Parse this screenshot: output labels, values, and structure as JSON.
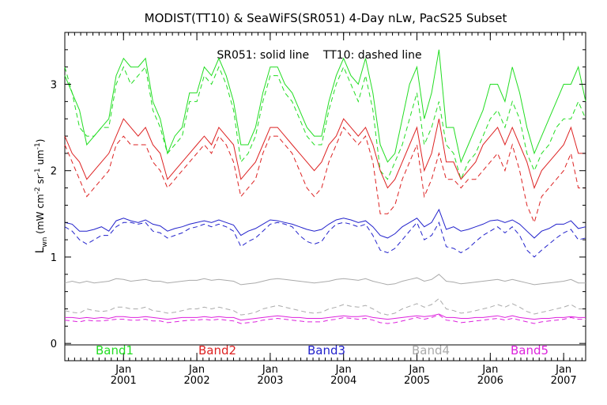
{
  "chart_data": {
    "type": "line",
    "title": "MODIST(TT10) & SeaWiFS(SR051) 4-Day nLw, PacS25 Subset",
    "annotation": "SR051: solid line    TT10: dashed line",
    "ylabel_main": "L",
    "ylabel_sub": "wn",
    "ylabel_units": "(mW cm",
    "ylabel_exp1": "-2",
    "ylabel_mid": " sr",
    "ylabel_exp2": "-1",
    "ylabel_mid2": " um",
    "ylabel_exp3": "-1",
    "ylabel_end": ")",
    "xlim": [
      2000.2,
      2007.3
    ],
    "ylim": [
      -0.2,
      3.6
    ],
    "yticks": [
      0,
      1,
      2,
      3
    ],
    "ytick_labels": [
      "0",
      "1",
      "2",
      "3"
    ],
    "xticks": [
      {
        "value": 2001.0,
        "month": "Jan",
        "year": "2001"
      },
      {
        "value": 2002.0,
        "month": "Jan",
        "year": "2002"
      },
      {
        "value": 2003.0,
        "month": "Jan",
        "year": "2003"
      },
      {
        "value": 2004.0,
        "month": "Jan",
        "year": "2004"
      },
      {
        "value": 2005.0,
        "month": "Jan",
        "year": "2005"
      },
      {
        "value": 2006.0,
        "month": "Jan",
        "year": "2006"
      },
      {
        "value": 2007.0,
        "month": "Jan",
        "year": "2007"
      }
    ],
    "legend": [
      {
        "label": "Band1",
        "color": "#22dd22"
      },
      {
        "label": "Band2",
        "color": "#dd2222"
      },
      {
        "label": "Band3",
        "color": "#2222cc"
      },
      {
        "label": "Band4",
        "color": "#aaaaaa"
      },
      {
        "label": "Band5",
        "color": "#dd22dd"
      }
    ],
    "x": [
      2000.2,
      2000.3,
      2000.4,
      2000.5,
      2000.6,
      2000.7,
      2000.8,
      2000.9,
      2001.0,
      2001.1,
      2001.2,
      2001.3,
      2001.4,
      2001.5,
      2001.6,
      2001.7,
      2001.8,
      2001.9,
      2002.0,
      2002.1,
      2002.2,
      2002.3,
      2002.4,
      2002.5,
      2002.6,
      2002.7,
      2002.8,
      2002.9,
      2003.0,
      2003.1,
      2003.2,
      2003.3,
      2003.4,
      2003.5,
      2003.6,
      2003.7,
      2003.8,
      2003.9,
      2004.0,
      2004.1,
      2004.2,
      2004.3,
      2004.4,
      2004.5,
      2004.6,
      2004.7,
      2004.8,
      2004.9,
      2005.0,
      2005.1,
      2005.2,
      2005.3,
      2005.4,
      2005.5,
      2005.6,
      2005.7,
      2005.8,
      2005.9,
      2006.0,
      2006.1,
      2006.2,
      2006.3,
      2006.4,
      2006.5,
      2006.6,
      2006.7,
      2006.8,
      2006.9,
      2007.0,
      2007.1,
      2007.2,
      2007.3
    ],
    "series": [
      {
        "name": "Band1",
        "style": "solid",
        "color": "#22dd22",
        "values": [
          3.1,
          2.9,
          2.7,
          2.3,
          2.4,
          2.5,
          2.6,
          3.1,
          3.3,
          3.2,
          3.2,
          3.3,
          2.8,
          2.6,
          2.2,
          2.4,
          2.5,
          2.9,
          2.9,
          3.2,
          3.1,
          3.3,
          3.1,
          2.8,
          2.3,
          2.3,
          2.5,
          2.9,
          3.2,
          3.2,
          3.0,
          2.9,
          2.7,
          2.5,
          2.4,
          2.4,
          2.8,
          3.1,
          3.3,
          3.1,
          3.0,
          3.3,
          2.9,
          2.3,
          2.1,
          2.2,
          2.6,
          3.0,
          3.2,
          2.6,
          2.9,
          3.4,
          2.5,
          2.5,
          2.1,
          2.3,
          2.5,
          2.7,
          3.0,
          3.0,
          2.8,
          3.2,
          2.9,
          2.5,
          2.2,
          2.4,
          2.6,
          2.8,
          3.0,
          3.0,
          3.2,
          2.8
        ]
      },
      {
        "name": "Band1",
        "style": "dashed",
        "color": "#22dd22",
        "values": [
          3.2,
          2.9,
          2.5,
          2.4,
          2.4,
          2.5,
          2.5,
          3.0,
          3.2,
          3.0,
          3.1,
          3.2,
          2.7,
          2.5,
          2.2,
          2.3,
          2.4,
          2.8,
          2.8,
          3.1,
          3.0,
          3.2,
          3.0,
          2.7,
          2.1,
          2.2,
          2.4,
          2.8,
          3.1,
          3.1,
          2.9,
          2.8,
          2.6,
          2.4,
          2.3,
          2.3,
          2.7,
          3.0,
          3.2,
          3.0,
          2.8,
          3.1,
          2.7,
          2.0,
          1.9,
          2.1,
          2.3,
          2.6,
          2.9,
          2.3,
          2.5,
          2.8,
          2.3,
          2.2,
          1.9,
          2.1,
          2.2,
          2.4,
          2.6,
          2.7,
          2.5,
          2.8,
          2.6,
          2.2,
          2.0,
          2.2,
          2.3,
          2.5,
          2.6,
          2.6,
          2.8,
          2.6
        ]
      },
      {
        "name": "Band2",
        "style": "solid",
        "color": "#dd2222",
        "values": [
          2.4,
          2.2,
          2.1,
          1.9,
          2.0,
          2.1,
          2.2,
          2.4,
          2.6,
          2.5,
          2.4,
          2.5,
          2.3,
          2.2,
          1.9,
          2.0,
          2.1,
          2.2,
          2.3,
          2.4,
          2.3,
          2.5,
          2.4,
          2.3,
          1.9,
          2.0,
          2.1,
          2.3,
          2.5,
          2.5,
          2.4,
          2.3,
          2.2,
          2.1,
          2.0,
          2.1,
          2.3,
          2.4,
          2.6,
          2.5,
          2.4,
          2.5,
          2.3,
          2.0,
          1.8,
          1.9,
          2.1,
          2.3,
          2.5,
          2.0,
          2.2,
          2.6,
          2.1,
          2.1,
          1.9,
          2.0,
          2.1,
          2.3,
          2.4,
          2.5,
          2.3,
          2.5,
          2.3,
          2.1,
          1.8,
          2.0,
          2.1,
          2.2,
          2.3,
          2.5,
          2.2,
          2.2
        ]
      },
      {
        "name": "Band2",
        "style": "dashed",
        "color": "#dd2222",
        "values": [
          2.3,
          2.1,
          1.9,
          1.7,
          1.8,
          1.9,
          2.0,
          2.3,
          2.4,
          2.3,
          2.3,
          2.3,
          2.1,
          2.0,
          1.8,
          1.9,
          2.0,
          2.1,
          2.2,
          2.3,
          2.2,
          2.4,
          2.3,
          2.1,
          1.7,
          1.8,
          1.9,
          2.2,
          2.4,
          2.4,
          2.3,
          2.2,
          2.0,
          1.8,
          1.7,
          1.8,
          2.1,
          2.3,
          2.5,
          2.4,
          2.3,
          2.4,
          2.1,
          1.5,
          1.5,
          1.6,
          1.9,
          2.1,
          2.3,
          1.7,
          1.9,
          2.2,
          1.9,
          1.9,
          1.8,
          1.9,
          1.9,
          2.0,
          2.1,
          2.2,
          2.0,
          2.3,
          2.0,
          1.6,
          1.4,
          1.7,
          1.8,
          1.9,
          2.0,
          2.2,
          1.8,
          1.8
        ]
      },
      {
        "name": "Band3",
        "style": "solid",
        "color": "#2222cc",
        "values": [
          1.4,
          1.38,
          1.3,
          1.3,
          1.32,
          1.35,
          1.3,
          1.42,
          1.45,
          1.42,
          1.4,
          1.43,
          1.38,
          1.36,
          1.3,
          1.33,
          1.35,
          1.38,
          1.4,
          1.42,
          1.4,
          1.43,
          1.4,
          1.37,
          1.25,
          1.3,
          1.33,
          1.38,
          1.43,
          1.42,
          1.4,
          1.38,
          1.35,
          1.32,
          1.3,
          1.32,
          1.38,
          1.43,
          1.45,
          1.43,
          1.4,
          1.42,
          1.35,
          1.25,
          1.22,
          1.27,
          1.35,
          1.4,
          1.45,
          1.35,
          1.4,
          1.55,
          1.32,
          1.35,
          1.3,
          1.32,
          1.35,
          1.38,
          1.42,
          1.43,
          1.4,
          1.43,
          1.38,
          1.3,
          1.22,
          1.3,
          1.33,
          1.38,
          1.38,
          1.42,
          1.33,
          1.35
        ]
      },
      {
        "name": "Band3",
        "style": "dashed",
        "color": "#2222cc",
        "values": [
          1.35,
          1.3,
          1.2,
          1.15,
          1.2,
          1.25,
          1.25,
          1.35,
          1.4,
          1.4,
          1.38,
          1.4,
          1.3,
          1.28,
          1.22,
          1.25,
          1.28,
          1.33,
          1.35,
          1.38,
          1.35,
          1.38,
          1.35,
          1.3,
          1.12,
          1.18,
          1.22,
          1.3,
          1.38,
          1.4,
          1.38,
          1.35,
          1.25,
          1.18,
          1.15,
          1.18,
          1.3,
          1.38,
          1.4,
          1.38,
          1.35,
          1.38,
          1.25,
          1.08,
          1.05,
          1.1,
          1.2,
          1.3,
          1.4,
          1.2,
          1.25,
          1.4,
          1.12,
          1.1,
          1.05,
          1.1,
          1.18,
          1.25,
          1.3,
          1.35,
          1.28,
          1.35,
          1.25,
          1.08,
          1.0,
          1.08,
          1.15,
          1.22,
          1.28,
          1.32,
          1.2,
          1.22
        ]
      },
      {
        "name": "Band4",
        "style": "solid",
        "color": "#aaaaaa",
        "values": [
          0.7,
          0.72,
          0.7,
          0.72,
          0.7,
          0.71,
          0.72,
          0.75,
          0.74,
          0.72,
          0.73,
          0.74,
          0.72,
          0.72,
          0.7,
          0.71,
          0.72,
          0.73,
          0.73,
          0.75,
          0.73,
          0.74,
          0.73,
          0.72,
          0.68,
          0.69,
          0.7,
          0.72,
          0.74,
          0.75,
          0.74,
          0.73,
          0.72,
          0.71,
          0.7,
          0.71,
          0.72,
          0.74,
          0.75,
          0.74,
          0.73,
          0.75,
          0.72,
          0.7,
          0.68,
          0.69,
          0.72,
          0.74,
          0.76,
          0.72,
          0.74,
          0.8,
          0.72,
          0.71,
          0.69,
          0.7,
          0.71,
          0.72,
          0.73,
          0.74,
          0.72,
          0.74,
          0.72,
          0.7,
          0.68,
          0.69,
          0.7,
          0.71,
          0.72,
          0.74,
          0.7,
          0.7
        ]
      },
      {
        "name": "Band4",
        "style": "dashed",
        "color": "#aaaaaa",
        "values": [
          0.38,
          0.36,
          0.35,
          0.4,
          0.38,
          0.37,
          0.38,
          0.42,
          0.42,
          0.4,
          0.4,
          0.42,
          0.38,
          0.37,
          0.35,
          0.36,
          0.38,
          0.4,
          0.4,
          0.42,
          0.4,
          0.42,
          0.4,
          0.38,
          0.33,
          0.34,
          0.36,
          0.4,
          0.42,
          0.44,
          0.42,
          0.4,
          0.38,
          0.36,
          0.35,
          0.36,
          0.4,
          0.42,
          0.45,
          0.43,
          0.42,
          0.44,
          0.4,
          0.35,
          0.33,
          0.35,
          0.4,
          0.43,
          0.46,
          0.42,
          0.45,
          0.52,
          0.4,
          0.38,
          0.35,
          0.36,
          0.38,
          0.4,
          0.42,
          0.45,
          0.42,
          0.46,
          0.42,
          0.37,
          0.34,
          0.36,
          0.38,
          0.4,
          0.42,
          0.45,
          0.4,
          0.4
        ]
      },
      {
        "name": "Band5",
        "style": "solid",
        "color": "#dd22dd",
        "values": [
          0.3,
          0.3,
          0.29,
          0.3,
          0.29,
          0.3,
          0.29,
          0.31,
          0.31,
          0.3,
          0.3,
          0.31,
          0.3,
          0.29,
          0.28,
          0.29,
          0.3,
          0.3,
          0.3,
          0.31,
          0.3,
          0.31,
          0.3,
          0.3,
          0.27,
          0.28,
          0.29,
          0.3,
          0.31,
          0.32,
          0.31,
          0.3,
          0.3,
          0.29,
          0.29,
          0.29,
          0.3,
          0.31,
          0.32,
          0.31,
          0.31,
          0.32,
          0.3,
          0.29,
          0.28,
          0.29,
          0.3,
          0.31,
          0.32,
          0.31,
          0.32,
          0.34,
          0.3,
          0.3,
          0.29,
          0.29,
          0.3,
          0.3,
          0.31,
          0.32,
          0.3,
          0.32,
          0.3,
          0.29,
          0.28,
          0.29,
          0.29,
          0.3,
          0.3,
          0.31,
          0.3,
          0.3
        ]
      },
      {
        "name": "Band5",
        "style": "dashed",
        "color": "#dd22dd",
        "values": [
          0.27,
          0.26,
          0.25,
          0.27,
          0.26,
          0.26,
          0.27,
          0.28,
          0.28,
          0.27,
          0.27,
          0.28,
          0.26,
          0.26,
          0.24,
          0.25,
          0.26,
          0.27,
          0.27,
          0.28,
          0.27,
          0.28,
          0.27,
          0.26,
          0.23,
          0.24,
          0.25,
          0.27,
          0.28,
          0.29,
          0.28,
          0.27,
          0.26,
          0.25,
          0.25,
          0.25,
          0.27,
          0.28,
          0.3,
          0.29,
          0.28,
          0.29,
          0.27,
          0.24,
          0.23,
          0.24,
          0.26,
          0.28,
          0.3,
          0.28,
          0.3,
          0.33,
          0.27,
          0.26,
          0.24,
          0.25,
          0.26,
          0.27,
          0.28,
          0.29,
          0.27,
          0.29,
          0.27,
          0.25,
          0.23,
          0.25,
          0.26,
          0.27,
          0.28,
          0.3,
          0.28,
          0.28
        ]
      }
    ]
  }
}
